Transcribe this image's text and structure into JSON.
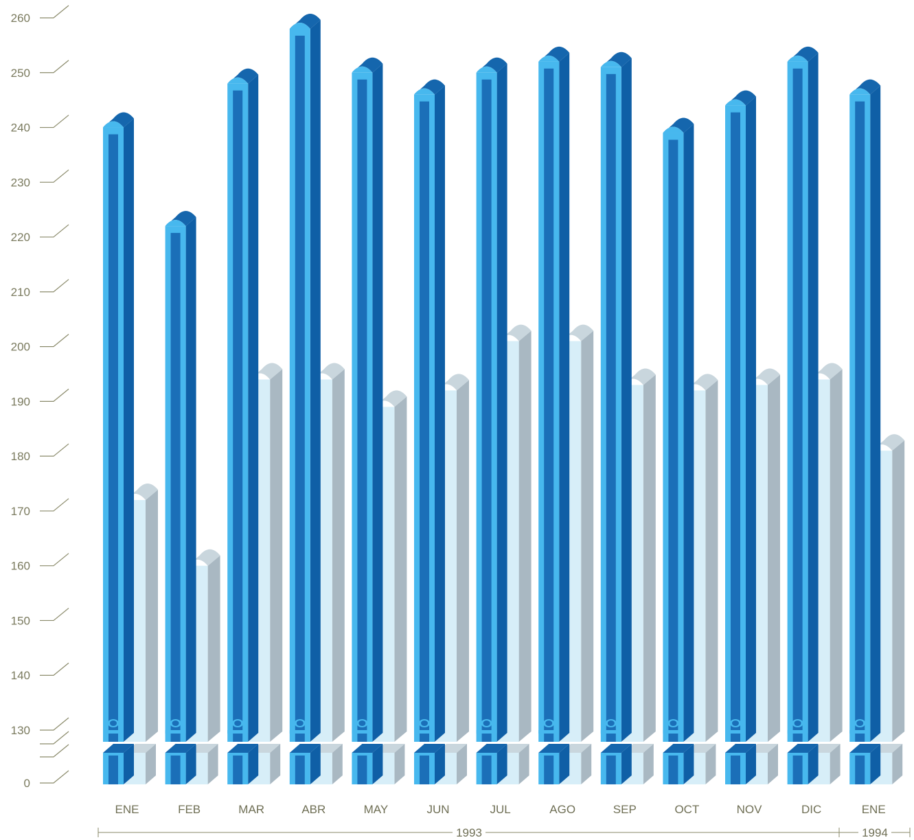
{
  "chart_data": {
    "type": "bar",
    "categories": [
      "ENE",
      "FEB",
      "MAR",
      "ABR",
      "MAY",
      "JUN",
      "JUL",
      "AGO",
      "SEP",
      "OCT",
      "NOV",
      "DIC",
      "ENE"
    ],
    "series": [
      {
        "values": [
          240,
          222,
          248,
          258,
          250,
          246,
          250,
          252,
          251,
          239,
          244,
          252,
          246
        ],
        "color": "#1b7cc9"
      },
      {
        "values": [
          172,
          160,
          194,
          194,
          189,
          192,
          201,
          201,
          193,
          192,
          193,
          194,
          181
        ],
        "color": "#d7eef8"
      }
    ],
    "y_ticks": [
      "0",
      "130",
      "140",
      "150",
      "160",
      "170",
      "180",
      "190",
      "200",
      "210",
      "220",
      "230",
      "240",
      "250",
      "260"
    ],
    "ylim": [
      130,
      260
    ],
    "axis_break": true,
    "year_groups": [
      {
        "label": "1993",
        "from": 0,
        "to": 11
      },
      {
        "label": "1994",
        "from": 12,
        "to": 12
      }
    ],
    "title": "",
    "xlabel": "",
    "ylabel": ""
  }
}
